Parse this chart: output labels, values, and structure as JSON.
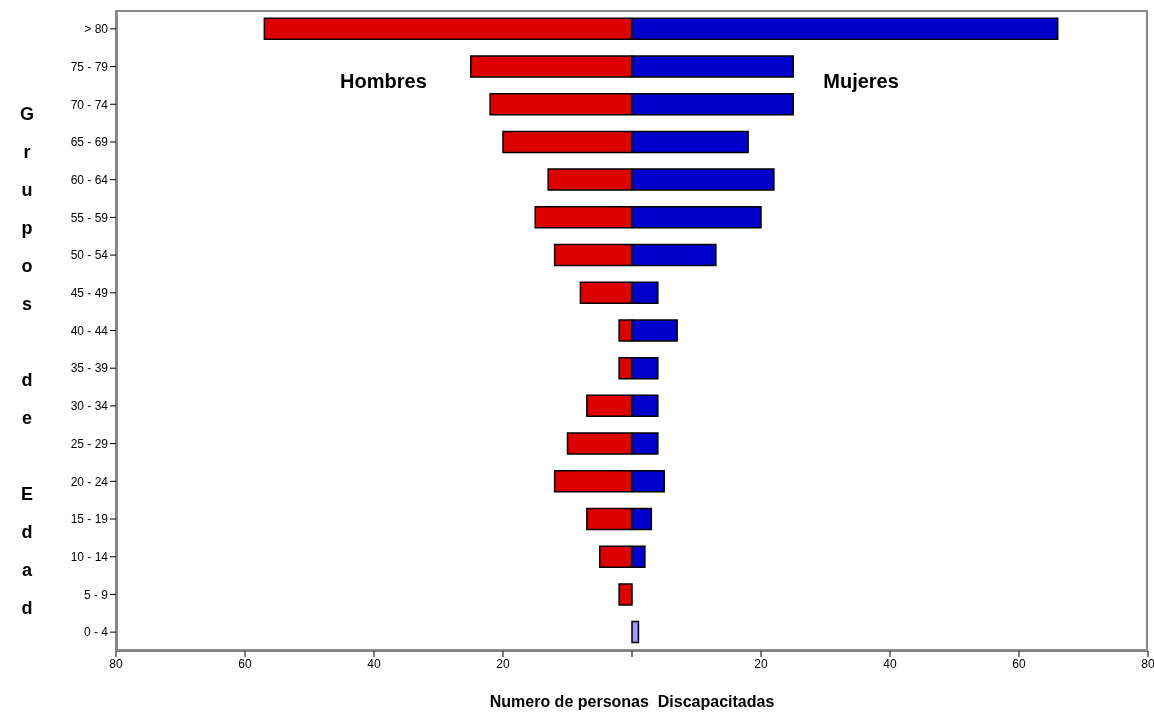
{
  "chart_data": {
    "type": "bar",
    "orientation": "horizontal",
    "stacked": true,
    "xlabel": "Numero de personas  Discapacitadas",
    "ylabel": "Grupos de Edad",
    "categories": [
      "> 80",
      "75 - 79",
      "70 - 74",
      "65 - 69",
      "60 - 64",
      "55 - 59",
      "50 - 54",
      "45 - 49",
      "40 - 44",
      "35 - 39",
      "30 - 34",
      "25 - 29",
      "20 - 24",
      "15 - 19",
      "10 - 14",
      "5 - 9",
      "0 - 4"
    ],
    "series": [
      {
        "name": "Hombres",
        "color": "#dd0000",
        "values": [
          -57,
          -25,
          -22,
          -20,
          -13,
          -15,
          -12,
          -8,
          -2,
          -2,
          -7,
          -10,
          -12,
          -7,
          -5,
          -2,
          0
        ]
      },
      {
        "name": "Mujeres",
        "color": "#0000cc",
        "colors": [
          "#0000cc",
          "#0000cc",
          "#0000cc",
          "#0000cc",
          "#0000cc",
          "#0000cc",
          "#0000cc",
          "#0000cc",
          "#0000cc",
          "#0000cc",
          "#0000cc",
          "#0000cc",
          "#0000cc",
          "#0000cc",
          "#0000cc",
          "#0000cc",
          "#9999ff"
        ],
        "values": [
          66,
          25,
          25,
          18,
          22,
          20,
          13,
          4,
          7,
          4,
          4,
          4,
          5,
          3,
          2,
          0,
          1
        ]
      }
    ],
    "xlim": [
      -80,
      80
    ],
    "xticks": [
      {
        "value": -80,
        "label": "80"
      },
      {
        "value": -60,
        "label": "60"
      },
      {
        "value": -40,
        "label": "40"
      },
      {
        "value": -20,
        "label": "20"
      },
      {
        "value": 0,
        "label": null
      },
      20,
      40,
      60,
      80
    ],
    "grid": false,
    "legend": false
  }
}
